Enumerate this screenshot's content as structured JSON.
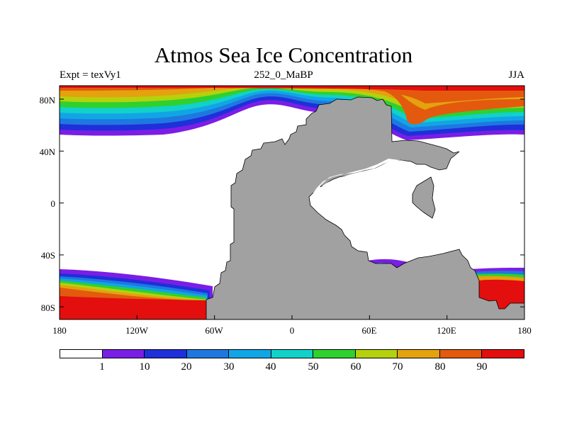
{
  "title": "Atmos Sea Ice Concentration",
  "subtitle_left": "Expt = texVy1",
  "subtitle_center": "252_0_MaBP",
  "subtitle_right": "JJA",
  "lat_labels": [
    "80N",
    "40N",
    "0",
    "40S",
    "80S"
  ],
  "lon_labels": [
    "180",
    "120W",
    "60W",
    "0",
    "60E",
    "120E",
    "180"
  ],
  "colorbar": {
    "labels": [
      "1",
      "10",
      "20",
      "30",
      "40",
      "50",
      "60",
      "70",
      "80",
      "90"
    ],
    "colors": [
      "#ffffff",
      "#7a1ee6",
      "#1f2fd9",
      "#1e78e0",
      "#11a5e6",
      "#11d1c9",
      "#2ed12e",
      "#b5d10e",
      "#e3a20e",
      "#e35a0e",
      "#e30e0e"
    ]
  },
  "land_color": "#a1a1a1"
}
